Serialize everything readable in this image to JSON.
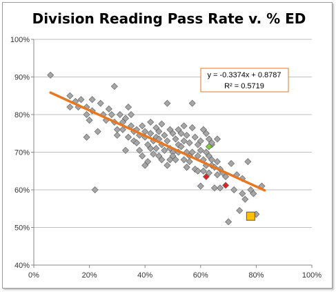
{
  "chart_data": {
    "type": "scatter",
    "title": "Division Reading Pass Rate v. % ED",
    "xlabel": "",
    "ylabel": "",
    "xlim": [
      0,
      1
    ],
    "ylim": [
      0.4,
      1
    ],
    "x_ticks": [
      "0%",
      "20%",
      "40%",
      "60%",
      "80%",
      "100%"
    ],
    "y_ticks": [
      "40%",
      "50%",
      "60%",
      "70%",
      "80%",
      "90%",
      "100%"
    ],
    "grid": "horizontal",
    "trendline": {
      "equation": "y = -0.3374x + 0.8787",
      "r_squared": "R² = 0.5719",
      "slope": -0.3374,
      "intercept": 0.8787,
      "x_range": [
        0.06,
        0.83
      ],
      "color": "#e87722"
    },
    "colors": {
      "division": "#a6a6a6",
      "division_edge": "#6f6f6f",
      "red": "#e21f1f",
      "green": "#7bd13c",
      "highlight": "#ffc000"
    },
    "series": [
      {
        "marker": "diamond",
        "color": "#a6a6a6",
        "points": [
          [
            0.06,
            0.905
          ],
          [
            0.13,
            0.85
          ],
          [
            0.13,
            0.82
          ],
          [
            0.15,
            0.835
          ],
          [
            0.16,
            0.82
          ],
          [
            0.17,
            0.84
          ],
          [
            0.19,
            0.82
          ],
          [
            0.19,
            0.8
          ],
          [
            0.19,
            0.74
          ],
          [
            0.2,
            0.785
          ],
          [
            0.21,
            0.84
          ],
          [
            0.21,
            0.81
          ],
          [
            0.22,
            0.6
          ],
          [
            0.23,
            0.755
          ],
          [
            0.24,
            0.83
          ],
          [
            0.25,
            0.8
          ],
          [
            0.26,
            0.785
          ],
          [
            0.27,
            0.815
          ],
          [
            0.28,
            0.8
          ],
          [
            0.29,
            0.875
          ],
          [
            0.29,
            0.78
          ],
          [
            0.3,
            0.76
          ],
          [
            0.3,
            0.745
          ],
          [
            0.31,
            0.8
          ],
          [
            0.32,
            0.78
          ],
          [
            0.32,
            0.76
          ],
          [
            0.33,
            0.705
          ],
          [
            0.33,
            0.79
          ],
          [
            0.34,
            0.82
          ],
          [
            0.34,
            0.74
          ],
          [
            0.35,
            0.8
          ],
          [
            0.35,
            0.77
          ],
          [
            0.36,
            0.755
          ],
          [
            0.36,
            0.73
          ],
          [
            0.37,
            0.76
          ],
          [
            0.37,
            0.725
          ],
          [
            0.38,
            0.745
          ],
          [
            0.38,
            0.705
          ],
          [
            0.39,
            0.77
          ],
          [
            0.39,
            0.69
          ],
          [
            0.4,
            0.755
          ],
          [
            0.4,
            0.74
          ],
          [
            0.4,
            0.665
          ],
          [
            0.41,
            0.72
          ],
          [
            0.41,
            0.675
          ],
          [
            0.42,
            0.78
          ],
          [
            0.42,
            0.75
          ],
          [
            0.42,
            0.71
          ],
          [
            0.43,
            0.73
          ],
          [
            0.43,
            0.695
          ],
          [
            0.44,
            0.765
          ],
          [
            0.44,
            0.74
          ],
          [
            0.44,
            0.71
          ],
          [
            0.45,
            0.755
          ],
          [
            0.45,
            0.735
          ],
          [
            0.45,
            0.69
          ],
          [
            0.46,
            0.775
          ],
          [
            0.46,
            0.72
          ],
          [
            0.46,
            0.68
          ],
          [
            0.47,
            0.745
          ],
          [
            0.47,
            0.705
          ],
          [
            0.48,
            0.83
          ],
          [
            0.48,
            0.73
          ],
          [
            0.48,
            0.665
          ],
          [
            0.49,
            0.76
          ],
          [
            0.49,
            0.71
          ],
          [
            0.49,
            0.68
          ],
          [
            0.5,
            0.75
          ],
          [
            0.5,
            0.7
          ],
          [
            0.5,
            0.69
          ],
          [
            0.51,
            0.735
          ],
          [
            0.51,
            0.68
          ],
          [
            0.52,
            0.76
          ],
          [
            0.52,
            0.72
          ],
          [
            0.52,
            0.7
          ],
          [
            0.53,
            0.75
          ],
          [
            0.53,
            0.715
          ],
          [
            0.54,
            0.77
          ],
          [
            0.54,
            0.73
          ],
          [
            0.54,
            0.68
          ],
          [
            0.55,
            0.745
          ],
          [
            0.55,
            0.7
          ],
          [
            0.55,
            0.66
          ],
          [
            0.56,
            0.725
          ],
          [
            0.56,
            0.69
          ],
          [
            0.56,
            0.675
          ],
          [
            0.57,
            0.83
          ],
          [
            0.57,
            0.765
          ],
          [
            0.57,
            0.7
          ],
          [
            0.58,
            0.74
          ],
          [
            0.58,
            0.655
          ],
          [
            0.59,
            0.72
          ],
          [
            0.59,
            0.69
          ],
          [
            0.59,
            0.65
          ],
          [
            0.6,
            0.73
          ],
          [
            0.6,
            0.705
          ],
          [
            0.6,
            0.61
          ],
          [
            0.61,
            0.76
          ],
          [
            0.61,
            0.68
          ],
          [
            0.61,
            0.65
          ],
          [
            0.62,
            0.75
          ],
          [
            0.62,
            0.7
          ],
          [
            0.62,
            0.665
          ],
          [
            0.63,
            0.735
          ],
          [
            0.63,
            0.69
          ],
          [
            0.63,
            0.645
          ],
          [
            0.64,
            0.72
          ],
          [
            0.64,
            0.68
          ],
          [
            0.64,
            0.665
          ],
          [
            0.65,
            0.66
          ],
          [
            0.65,
            0.605
          ],
          [
            0.66,
            0.735
          ],
          [
            0.66,
            0.675
          ],
          [
            0.66,
            0.64
          ],
          [
            0.67,
            0.655
          ],
          [
            0.67,
            0.605
          ],
          [
            0.68,
            0.645
          ],
          [
            0.69,
            0.635
          ],
          [
            0.7,
            0.515
          ],
          [
            0.71,
            0.67
          ],
          [
            0.72,
            0.6
          ],
          [
            0.73,
            0.64
          ],
          [
            0.74,
            0.545
          ],
          [
            0.75,
            0.63
          ],
          [
            0.75,
            0.59
          ],
          [
            0.76,
            0.575
          ],
          [
            0.77,
            0.675
          ],
          [
            0.78,
            0.6
          ],
          [
            0.79,
            0.59
          ],
          [
            0.8,
            0.535
          ],
          [
            0.82,
            0.61
          ],
          [
            0.55,
            0.66
          ],
          [
            0.64,
            0.725
          ],
          [
            0.62,
            0.665
          ]
        ]
      },
      {
        "marker": "diamond",
        "color": "#7bd13c",
        "points": [
          [
            0.63,
            0.715
          ]
        ]
      },
      {
        "marker": "diamond",
        "color": "#e21f1f",
        "points": [
          [
            0.62,
            0.635
          ],
          [
            0.69,
            0.612
          ]
        ]
      },
      {
        "marker": "square",
        "color": "#ffc000",
        "points": [
          [
            0.78,
            0.53
          ]
        ]
      }
    ]
  }
}
